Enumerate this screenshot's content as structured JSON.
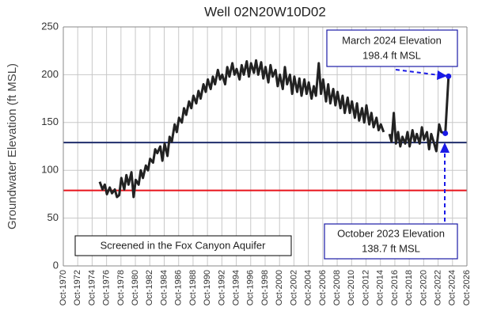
{
  "chart_data": {
    "type": "line",
    "title": "Well 02N20W10D02",
    "y_label": "Groundwater Elevation (ft MSL)",
    "xlim": [
      1970.75,
      2026.75
    ],
    "ylim": [
      0,
      250
    ],
    "yticks": [
      0,
      50,
      100,
      150,
      200,
      250
    ],
    "xticks": [
      {
        "value": 1970.75,
        "label": "Oct-1970"
      },
      {
        "value": 1972.75,
        "label": "Oct-1972"
      },
      {
        "value": 1974.75,
        "label": "Oct-1974"
      },
      {
        "value": 1976.75,
        "label": "Oct-1976"
      },
      {
        "value": 1978.75,
        "label": "Oct-1978"
      },
      {
        "value": 1980.75,
        "label": "Oct-1980"
      },
      {
        "value": 1982.75,
        "label": "Oct-1982"
      },
      {
        "value": 1984.75,
        "label": "Oct-1984"
      },
      {
        "value": 1986.75,
        "label": "Oct-1986"
      },
      {
        "value": 1988.75,
        "label": "Oct-1988"
      },
      {
        "value": 1990.75,
        "label": "Oct-1990"
      },
      {
        "value": 1992.75,
        "label": "Oct-1992"
      },
      {
        "value": 1994.75,
        "label": "Oct-1994"
      },
      {
        "value": 1996.75,
        "label": "Oct-1996"
      },
      {
        "value": 1998.75,
        "label": "Oct-1998"
      },
      {
        "value": 2000.75,
        "label": "Oct-2000"
      },
      {
        "value": 2002.75,
        "label": "Oct-2002"
      },
      {
        "value": 2004.75,
        "label": "Oct-2004"
      },
      {
        "value": 2006.75,
        "label": "Oct-2006"
      },
      {
        "value": 2008.75,
        "label": "Oct-2008"
      },
      {
        "value": 2010.75,
        "label": "Oct-2010"
      },
      {
        "value": 2012.75,
        "label": "Oct-2012"
      },
      {
        "value": 2014.75,
        "label": "Oct-2014"
      },
      {
        "value": 2016.75,
        "label": "Oct-2016"
      },
      {
        "value": 2018.75,
        "label": "Oct-2018"
      },
      {
        "value": 2020.75,
        "label": "Oct-2020"
      },
      {
        "value": 2022.75,
        "label": "Oct-2022"
      },
      {
        "value": 2024.75,
        "label": "Oct-2024"
      },
      {
        "value": 2026.75,
        "label": "Oct-2026"
      }
    ],
    "grid": true,
    "color": "#222222",
    "x": [
      1975.8,
      1976.2,
      1976.5,
      1976.8,
      1977.2,
      1977.5,
      1977.9,
      1978.2,
      1978.5,
      1978.8,
      1979.2,
      1979.5,
      1979.8,
      1980.2,
      1980.5,
      1980.8,
      1981.2,
      1981.5,
      1981.8,
      1982.2,
      1982.5,
      1982.8,
      1983.2,
      1983.5,
      1983.8,
      1984.2,
      1984.5,
      1984.8,
      1985.2,
      1985.5,
      1985.8,
      1986.2,
      1986.5,
      1986.8,
      1987.2,
      1987.5,
      1987.8,
      1988.2,
      1988.5,
      1988.8,
      1989.2,
      1989.5,
      1989.8,
      1990.2,
      1990.5,
      1990.8,
      1991.2,
      1991.5,
      1991.8,
      1992.2,
      1992.5,
      1992.8,
      1993.2,
      1993.5,
      1993.8,
      1994.2,
      1994.5,
      1994.8,
      1995.2,
      1995.5,
      1995.8,
      1996.2,
      1996.5,
      1996.8,
      1997.2,
      1997.5,
      1997.8,
      1998.2,
      1998.5,
      1998.8,
      1999.2,
      1999.5,
      1999.8,
      2000.2,
      2000.5,
      2000.8,
      2001.2,
      2001.5,
      2001.8,
      2002.2,
      2002.5,
      2002.8,
      2003.2,
      2003.5,
      2003.8,
      2004.2,
      2004.5,
      2004.8,
      2005.2,
      2005.5,
      2005.8,
      2006.2,
      2006.5,
      2006.8,
      2007.2,
      2007.5,
      2007.8,
      2008.2,
      2008.5,
      2008.8,
      2009.2,
      2009.5,
      2009.8,
      2010.2,
      2010.5,
      2010.8,
      2011.2,
      2011.5,
      2011.8,
      2012.2,
      2012.5,
      2012.8,
      2013.2,
      2013.5,
      2013.8,
      2014.2,
      2014.5,
      2014.8,
      2015.2,
      2015.5,
      2016.0,
      2016.3,
      2016.6,
      2016.9,
      2017.2,
      2017.5,
      2017.8,
      2018.2,
      2018.5,
      2018.8,
      2019.2,
      2019.5,
      2019.8,
      2020.2,
      2020.5,
      2020.8,
      2021.2,
      2021.5,
      2021.8,
      2022.2,
      2022.5,
      2022.9,
      2023.2,
      2023.75,
      2024.2
    ],
    "values": [
      88,
      80,
      85,
      75,
      82,
      76,
      80,
      72,
      74,
      92,
      80,
      95,
      85,
      98,
      72,
      90,
      85,
      100,
      92,
      105,
      100,
      112,
      108,
      122,
      118,
      125,
      110,
      128,
      115,
      135,
      130,
      148,
      140,
      155,
      150,
      165,
      158,
      172,
      165,
      178,
      170,
      183,
      175,
      190,
      182,
      195,
      185,
      198,
      190,
      205,
      195,
      200,
      190,
      208,
      198,
      212,
      200,
      206,
      195,
      210,
      200,
      214,
      198,
      212,
      202,
      215,
      200,
      213,
      196,
      208,
      192,
      210,
      198,
      205,
      188,
      200,
      185,
      208,
      190,
      200,
      180,
      198,
      182,
      196,
      178,
      195,
      180,
      192,
      175,
      188,
      178,
      212,
      180,
      195,
      172,
      190,
      170,
      185,
      168,
      182,
      165,
      178,
      160,
      176,
      160,
      172,
      155,
      170,
      152,
      165,
      150,
      168,
      148,
      160,
      145,
      155,
      142,
      148,
      140,
      null,
      138,
      130,
      160,
      128,
      140,
      125,
      135,
      128,
      140,
      125,
      142,
      130,
      138,
      128,
      145,
      132,
      140,
      122,
      138,
      128,
      120,
      148,
      140,
      138.7,
      198.4
    ],
    "reference_lines": [
      {
        "value": 129,
        "color": "#1f2d6b"
      },
      {
        "value": 79,
        "color": "#e8131b"
      }
    ],
    "highlights": [
      {
        "x": 2024.2,
        "value": 198.4,
        "color": "#1a1ae6",
        "label": "March 2024 Elevation",
        "value_label": "198.4 ft MSL"
      },
      {
        "x": 2023.75,
        "value": 138.7,
        "color": "#1a1ae6",
        "label": "October 2023 Elevation",
        "value_label": "138.7 ft MSL"
      }
    ],
    "note": "Screened in the Fox Canyon Aquifer"
  }
}
